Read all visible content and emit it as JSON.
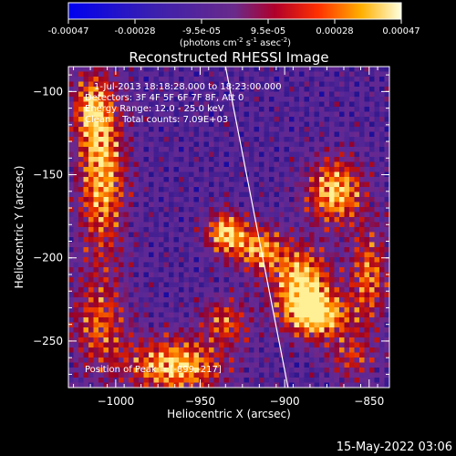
{
  "chart_data": {
    "type": "heatmap",
    "title": "Reconstructed RHESSI Image",
    "xlabel": "Heliocentric X (arcsec)",
    "ylabel": "Heliocentric Y (arcsec)",
    "xlim": [
      -1028,
      -838
    ],
    "ylim": [
      -278,
      -85
    ],
    "x_ticks": [
      -1000,
      -950,
      -900,
      -850
    ],
    "y_ticks": [
      -100,
      -150,
      -200,
      -250
    ],
    "colorbar": {
      "tick_labels": [
        "-0.00047",
        "-0.00028",
        "-9.5e-05",
        "9.5e-05",
        "0.00028",
        "0.00047"
      ],
      "range": [
        -0.00047,
        0.00047
      ],
      "unit_text": "(photons cm",
      "unit_sup1": "-2",
      "unit_mid": " s",
      "unit_sup2": "-1",
      "unit_tail": " asec",
      "unit_sup3": "-2",
      "unit_end": ")"
    },
    "info_lines": [
      "1-Jul-2013 18:18:28.000 to 18:23:00.000",
      "Detectors: 3F 4F 5F 6F 7F 8F, Att 0",
      "Energy Range: 12.0 - 25.0 keV",
      "Clean    Total counts: 7.09E+03"
    ],
    "peak_label": "Position of Peak = [-899,-217]",
    "date_stamp": "15-May-2022 03:06",
    "limb_line": [
      [
        -935,
        -85
      ],
      [
        -898,
        -278
      ]
    ],
    "blobs": [
      {
        "x": -1008,
        "y": -150,
        "sx": 10,
        "sy": 35,
        "a": 0.9
      },
      {
        "x": -1015,
        "y": -110,
        "sx": 8,
        "sy": 15,
        "a": 0.6
      },
      {
        "x": -1010,
        "y": -240,
        "sx": 12,
        "sy": 20,
        "a": 0.6
      },
      {
        "x": -965,
        "y": -265,
        "sx": 20,
        "sy": 12,
        "a": 0.95
      },
      {
        "x": -935,
        "y": -185,
        "sx": 8,
        "sy": 9,
        "a": 0.95
      },
      {
        "x": -915,
        "y": -195,
        "sx": 10,
        "sy": 10,
        "a": 0.8
      },
      {
        "x": -870,
        "y": -160,
        "sx": 12,
        "sy": 14,
        "a": 0.95
      },
      {
        "x": -890,
        "y": -215,
        "sx": 12,
        "sy": 15,
        "a": 1.0
      },
      {
        "x": -880,
        "y": -235,
        "sx": 14,
        "sy": 10,
        "a": 0.9
      },
      {
        "x": -935,
        "y": -238,
        "sx": 10,
        "sy": 10,
        "a": 0.6
      },
      {
        "x": -850,
        "y": -210,
        "sx": 8,
        "sy": 20,
        "a": 0.7
      },
      {
        "x": -860,
        "y": -260,
        "sx": 10,
        "sy": 10,
        "a": 0.5
      }
    ]
  }
}
